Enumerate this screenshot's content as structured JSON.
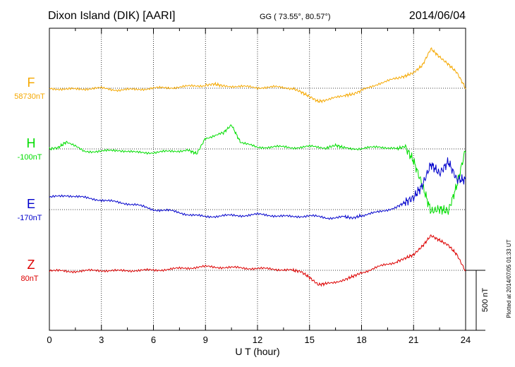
{
  "header": {
    "station": "Dixon Island (DIK)  [AARI]",
    "coords": "GG ( 73.55°,  80.57°)",
    "date": "2014/06/04"
  },
  "side_note": "Plotted at 2014/07/05 01:33 UT",
  "chart_data": {
    "type": "line",
    "title": "Dixon Island (DIK)  [AARI]",
    "xlabel": "U T (hour)",
    "xlim": [
      0,
      24
    ],
    "x_ticks": [
      "0",
      "3",
      "6",
      "9",
      "12",
      "15",
      "18",
      "21",
      "24"
    ],
    "grid": true,
    "scale_bar": {
      "label": "500 nT",
      "value_nT": 500
    },
    "series": [
      {
        "name": "F",
        "baseline_label": "58730nT",
        "baseline_nT": 58730,
        "color": "#f5a800",
        "x": [
          0,
          1,
          2,
          3,
          4,
          5,
          6,
          7,
          8,
          9,
          9.5,
          10,
          11,
          12,
          13,
          14,
          14.5,
          15,
          15.5,
          16,
          17,
          17.5,
          18,
          19,
          20,
          20.5,
          21,
          21.5,
          22,
          22.5,
          23,
          23.5,
          24
        ],
        "values": [
          0,
          -10,
          -5,
          0,
          -15,
          -10,
          0,
          5,
          15,
          25,
          35,
          20,
          15,
          5,
          10,
          0,
          -30,
          -70,
          -110,
          -100,
          -60,
          -50,
          -20,
          40,
          80,
          100,
          130,
          190,
          330,
          260,
          200,
          130,
          0
        ]
      },
      {
        "name": "H",
        "baseline_label": "-100nT",
        "baseline_nT": -100,
        "color": "#00dd00",
        "x": [
          0,
          0.5,
          1,
          2,
          3,
          4,
          5,
          6,
          7,
          8,
          8.5,
          9,
          10,
          10.5,
          11,
          12,
          13,
          14,
          15,
          16,
          16.5,
          17,
          18,
          19,
          20,
          20.5,
          21,
          21.5,
          22,
          22.5,
          23,
          23.5,
          24
        ],
        "values": [
          0,
          10,
          60,
          -20,
          -20,
          -10,
          -30,
          -30,
          -20,
          -10,
          -40,
          90,
          130,
          200,
          60,
          10,
          20,
          10,
          20,
          10,
          30,
          10,
          0,
          20,
          0,
          20,
          -100,
          -300,
          -520,
          -500,
          -520,
          -300,
          0
        ]
      },
      {
        "name": "E",
        "baseline_label": "-170nT",
        "baseline_nT": -170,
        "color": "#0000cc",
        "x": [
          0,
          1,
          2,
          3,
          4,
          5,
          6,
          7,
          8,
          9,
          10,
          11,
          12,
          13,
          14,
          15,
          16,
          17,
          17.5,
          18,
          19,
          20,
          20.5,
          21,
          21.5,
          22,
          22.5,
          23,
          23.5,
          24
        ],
        "values": [
          100,
          120,
          100,
          80,
          60,
          40,
          0,
          -10,
          -40,
          -60,
          -50,
          -50,
          -40,
          -50,
          -60,
          -50,
          -70,
          -60,
          -70,
          -50,
          -20,
          20,
          60,
          100,
          200,
          380,
          300,
          400,
          250,
          250
        ]
      },
      {
        "name": "Z",
        "baseline_label": "80nT",
        "baseline_nT": 80,
        "color": "#dd0000",
        "x": [
          0,
          1,
          2,
          3,
          4,
          5,
          6,
          7,
          8,
          9,
          10,
          11,
          12,
          13,
          14,
          14.5,
          15,
          15.5,
          16,
          17,
          17.5,
          18,
          19,
          20,
          20.5,
          21,
          21.5,
          22,
          22.5,
          23,
          23.5,
          24
        ],
        "values": [
          0,
          -10,
          -5,
          0,
          -5,
          0,
          0,
          10,
          20,
          30,
          25,
          20,
          15,
          10,
          0,
          -10,
          -60,
          -120,
          -110,
          -80,
          -50,
          -20,
          30,
          70,
          100,
          130,
          200,
          290,
          250,
          210,
          130,
          -10
        ]
      }
    ]
  }
}
